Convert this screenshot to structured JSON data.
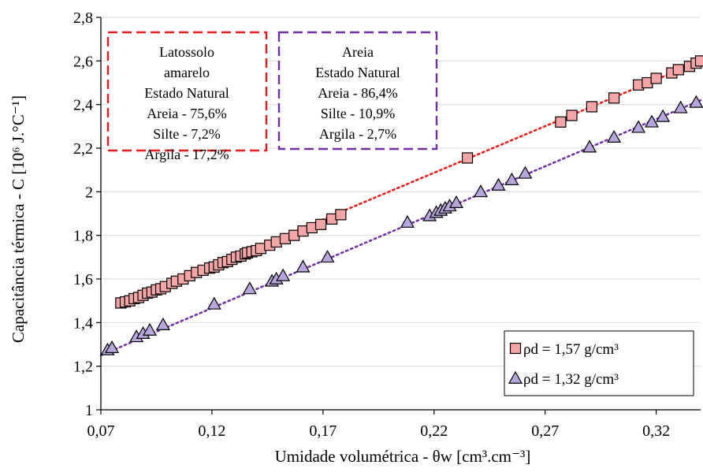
{
  "chart_data": {
    "type": "scatter",
    "xlabel": "Umidade volumétrica - θw [cm³.cm⁻³]",
    "ylabel": "Capacitância térmica - C [10⁶ J.°C⁻¹]",
    "xlim": [
      0.07,
      0.34
    ],
    "ylim": [
      1,
      2.8
    ],
    "x_ticks": [
      "0,07",
      "0,12",
      "0,17",
      "0,22",
      "0,27",
      "0,32"
    ],
    "x_tick_values": [
      0.07,
      0.12,
      0.17,
      0.22,
      0.27,
      0.32
    ],
    "y_ticks": [
      "1",
      "1,2",
      "1,4",
      "1,6",
      "1,8",
      "2",
      "2,2",
      "2,4",
      "2,6",
      "2,8"
    ],
    "y_tick_values": [
      1,
      1.2,
      1.4,
      1.6,
      1.8,
      2,
      2.2,
      2.4,
      2.6,
      2.8
    ],
    "grid": "horizontal",
    "legend_position": "bottom-right",
    "series": [
      {
        "name": "ρd = 1,57 g/cm³",
        "marker": "square",
        "color": "#f4a6a6",
        "trend_color": "#e8191b",
        "trend": [
          [
            0.078,
            1.48
          ],
          [
            0.34,
            2.6
          ]
        ],
        "x": [
          0.079,
          0.081,
          0.083,
          0.085,
          0.087,
          0.089,
          0.091,
          0.093,
          0.095,
          0.097,
          0.099,
          0.102,
          0.104,
          0.107,
          0.11,
          0.113,
          0.116,
          0.119,
          0.121,
          0.123,
          0.125,
          0.127,
          0.129,
          0.131,
          0.133,
          0.135,
          0.136,
          0.138,
          0.14,
          0.142,
          0.146,
          0.149,
          0.153,
          0.157,
          0.161,
          0.165,
          0.169,
          0.174,
          0.178,
          0.235,
          0.277,
          0.282,
          0.291,
          0.301,
          0.312,
          0.316,
          0.32,
          0.327,
          0.33,
          0.335,
          0.338,
          0.34
        ],
        "y": [
          1.49,
          1.495,
          1.5,
          1.51,
          1.515,
          1.525,
          1.535,
          1.54,
          1.55,
          1.555,
          1.565,
          1.58,
          1.59,
          1.6,
          1.615,
          1.63,
          1.64,
          1.65,
          1.655,
          1.665,
          1.675,
          1.68,
          1.69,
          1.7,
          1.705,
          1.715,
          1.72,
          1.725,
          1.73,
          1.74,
          1.755,
          1.77,
          1.785,
          1.8,
          1.82,
          1.835,
          1.85,
          1.875,
          1.895,
          2.155,
          2.32,
          2.35,
          2.39,
          2.43,
          2.49,
          2.5,
          2.52,
          2.545,
          2.56,
          2.575,
          2.59,
          2.6
        ]
      },
      {
        "name": "ρd = 1,32 g/cm³",
        "marker": "triangle",
        "color": "#b7a6db",
        "trend_color": "#7030a0",
        "trend": [
          [
            0.07,
            1.25
          ],
          [
            0.34,
            2.42
          ]
        ],
        "x": [
          0.073,
          0.075,
          0.086,
          0.089,
          0.092,
          0.098,
          0.121,
          0.137,
          0.147,
          0.149,
          0.152,
          0.161,
          0.172,
          0.208,
          0.218,
          0.221,
          0.223,
          0.225,
          0.227,
          0.23,
          0.241,
          0.249,
          0.255,
          0.261,
          0.29,
          0.301,
          0.312,
          0.318,
          0.323,
          0.331,
          0.338
        ],
        "y": [
          1.275,
          1.285,
          1.335,
          1.35,
          1.365,
          1.39,
          1.485,
          1.555,
          1.59,
          1.6,
          1.615,
          1.655,
          1.7,
          1.86,
          1.89,
          1.905,
          1.915,
          1.925,
          1.935,
          1.95,
          2.0,
          2.03,
          2.055,
          2.085,
          2.205,
          2.25,
          2.295,
          2.32,
          2.345,
          2.385,
          2.41
        ]
      }
    ],
    "annotations": [
      {
        "name": "box-latossolo",
        "border_color": "#e8191b",
        "lines": [
          "Latossolo",
          "amarelo",
          "Estado Natural",
          "Areia - 75,6%",
          "Silte - 7,2%",
          "Argila - 17,2%"
        ]
      },
      {
        "name": "box-areia",
        "border_color": "#7030a0",
        "lines": [
          "Areia",
          "Estado Natural",
          "Areia - 86,4%",
          "Silte - 10,9%",
          "Argila - 2,7%"
        ]
      }
    ]
  }
}
